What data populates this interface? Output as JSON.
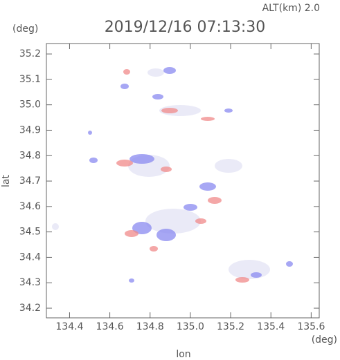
{
  "chart_data": {
    "type": "map",
    "title": "2019/12/16 07:13:30",
    "annotation": "ALT(km)  2.0",
    "y_unit": "(deg)",
    "x_unit": "(deg)",
    "xlabel": "lon",
    "ylabel": "lat",
    "xlim": [
      134.285,
      135.64
    ],
    "xticks": [
      134.4,
      134.6,
      134.8,
      {
        "value": 135,
        "label": "135.0"
      },
      135.2,
      135.4,
      135.6
    ],
    "ylim": [
      34.162,
      35.241
    ],
    "yticks": [
      34.2,
      34.3,
      34.4,
      34.5,
      34.6,
      34.7,
      34.8,
      34.9,
      {
        "value": 35,
        "label": "35.0"
      },
      35.1,
      35.2
    ]
  }
}
